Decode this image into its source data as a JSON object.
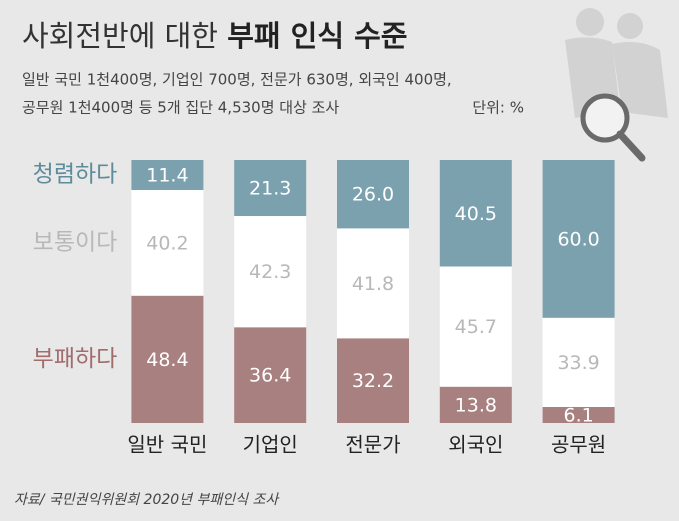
{
  "chart_data": {
    "type": "stacked_bar",
    "title": [
      "사회전반에 대한",
      "부패 인식 수준"
    ],
    "subtitle": [
      "일반 국민 1천400명, 기업인 700명, 전문가 630명, 외국인 400명,",
      "공무원 1천400명 등 5개 집단 4,530명 대상 조사"
    ],
    "unit": "단위: %",
    "source": "자료/ 국민권익위원회 2020년 부패인식 조사",
    "categories": [
      "일반 국민",
      "기업인",
      "전문가",
      "외국인",
      "공무원"
    ],
    "ylim": [
      0,
      100
    ],
    "series": [
      {
        "name": "부패하다",
        "color": "#a98080",
        "label_color": "#a06c6c",
        "value_color": "#ffffff",
        "values": [
          48.4,
          36.4,
          32.2,
          13.8,
          6.1
        ]
      },
      {
        "name": "보통이다",
        "color": "#ffffff",
        "label_color": "#b8b8b8",
        "value_color": "#b8b8b8",
        "values": [
          40.2,
          42.3,
          41.8,
          45.7,
          33.9
        ]
      },
      {
        "name": "청렴하다",
        "color": "#7ba1ae",
        "label_color": "#5e8c9b",
        "value_color": "#ffffff",
        "values": [
          11.4,
          21.3,
          26,
          40.5,
          60
        ],
        "value_labels": [
          "11.4",
          "21.3",
          "26.0",
          "40.5",
          "60.0"
        ]
      }
    ]
  }
}
